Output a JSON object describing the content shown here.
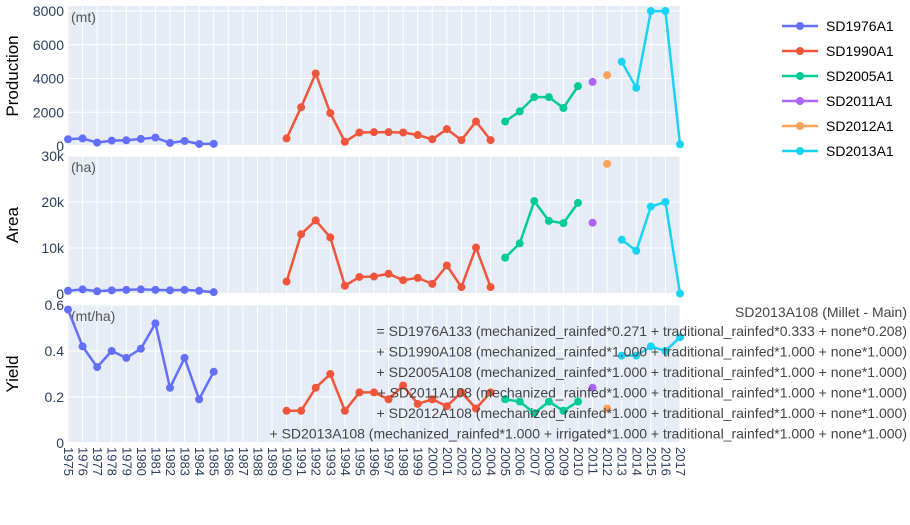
{
  "chart_data": {
    "type": "line",
    "x": [
      1975,
      1976,
      1977,
      1978,
      1979,
      1980,
      1981,
      1982,
      1983,
      1984,
      1985,
      1986,
      1987,
      1988,
      1989,
      1990,
      1991,
      1992,
      1993,
      1994,
      1995,
      1996,
      1997,
      1998,
      1999,
      2000,
      2001,
      2002,
      2003,
      2004,
      2005,
      2006,
      2007,
      2008,
      2009,
      2010,
      2011,
      2012,
      2013,
      2014,
      2015,
      2016,
      2017
    ],
    "x_tick_labels": [
      "1975",
      "1976",
      "1977",
      "1978",
      "1979",
      "1980",
      "1981",
      "1982",
      "1983",
      "1984",
      "1985",
      "1986",
      "1987",
      "1988",
      "1989",
      "1990",
      "1991",
      "1992",
      "1993",
      "1994",
      "1995",
      "1996",
      "1997",
      "1998",
      "1999",
      "2000",
      "2001",
      "2002",
      "2003",
      "2004",
      "2005",
      "2006",
      "2007",
      "2008",
      "2009",
      "2010",
      "2011",
      "2012",
      "2013",
      "2014",
      "2015",
      "2016",
      "2017"
    ],
    "xlim": [
      1975,
      2017
    ],
    "grid": true,
    "legend_position": "top-right",
    "series_colors": {
      "SD1976A1": "#636efa",
      "SD1990A1": "#ef553b",
      "SD2005A1": "#00cc96",
      "SD2011A1": "#ab63fa",
      "SD2012A1": "#ffa15a",
      "SD2013A1": "#19d3f3"
    },
    "legend": [
      "SD1976A1",
      "SD1990A1",
      "SD2005A1",
      "SD2011A1",
      "SD2012A1",
      "SD2013A1"
    ],
    "panels": [
      {
        "ylabel": "Production",
        "unit": "(mt)",
        "ylim": [
          0,
          8300
        ],
        "yticks": [
          0,
          2000,
          4000,
          6000,
          8000
        ],
        "ytick_labels": [
          "0",
          "2000",
          "4000",
          "6000",
          "8000"
        ],
        "series": [
          {
            "name": "SD1976A1",
            "x": [
              1975,
              1976,
              1977,
              1978,
              1979,
              1980,
              1981,
              1982,
              1983,
              1984,
              1985
            ],
            "y": [
              400,
              450,
              200,
              320,
              340,
              420,
              500,
              180,
              300,
              120,
              130
            ]
          },
          {
            "name": "SD1990A1",
            "x": [
              1990,
              1991,
              1992,
              1993,
              1994,
              1995,
              1996,
              1997,
              1998,
              1999,
              2000,
              2001,
              2002,
              2003,
              2004
            ],
            "y": [
              450,
              2300,
              4300,
              1950,
              250,
              800,
              820,
              820,
              800,
              650,
              400,
              1000,
              350,
              1450,
              350
            ]
          },
          {
            "name": "SD2005A1",
            "x": [
              2005,
              2006,
              2007,
              2008,
              2009,
              2010
            ],
            "y": [
              1450,
              2050,
              2900,
              2900,
              2250,
              3550
            ]
          },
          {
            "name": "SD2011A1",
            "x": [
              2011
            ],
            "y": [
              3800
            ]
          },
          {
            "name": "SD2012A1",
            "x": [
              2012
            ],
            "y": [
              4200
            ]
          },
          {
            "name": "SD2013A1",
            "x": [
              2013,
              2014,
              2015,
              2016,
              2017
            ],
            "y": [
              5000,
              3450,
              8000,
              8000,
              100
            ]
          }
        ]
      },
      {
        "ylabel": "Area",
        "unit": "(ha)",
        "ylim": [
          0,
          30000
        ],
        "yticks": [
          0,
          10000,
          20000,
          30000
        ],
        "ytick_labels": [
          "0",
          "10k",
          "20k",
          "30k"
        ],
        "series": [
          {
            "name": "SD1976A1",
            "x": [
              1975,
              1976,
              1977,
              1978,
              1979,
              1980,
              1981,
              1982,
              1983,
              1984,
              1985
            ],
            "y": [
              700,
              1000,
              600,
              800,
              900,
              1000,
              900,
              800,
              900,
              700,
              400
            ]
          },
          {
            "name": "SD1990A1",
            "x": [
              1990,
              1991,
              1992,
              1993,
              1994,
              1995,
              1996,
              1997,
              1998,
              1999,
              2000,
              2001,
              2002,
              2003,
              2004
            ],
            "y": [
              2700,
              13000,
              16000,
              12300,
              1800,
              3700,
              3800,
              4400,
              3000,
              3500,
              2200,
              6200,
              1500,
              10100,
              1500
            ]
          },
          {
            "name": "SD2005A1",
            "x": [
              2005,
              2006,
              2007,
              2008,
              2009,
              2010
            ],
            "y": [
              7900,
              11000,
              20200,
              15900,
              15400,
              19800
            ]
          },
          {
            "name": "SD2011A1",
            "x": [
              2011
            ],
            "y": [
              15500
            ]
          },
          {
            "name": "SD2012A1",
            "x": [
              2012
            ],
            "y": [
              28300
            ]
          },
          {
            "name": "SD2013A1",
            "x": [
              2013,
              2014,
              2015,
              2016,
              2017
            ],
            "y": [
              11800,
              9400,
              19000,
              20000,
              100
            ]
          }
        ]
      },
      {
        "ylabel": "Yield",
        "unit": "(mt/ha)",
        "ylim": [
          0,
          0.6
        ],
        "yticks": [
          0,
          0.2,
          0.4,
          0.6
        ],
        "ytick_labels": [
          "0",
          "0.2",
          "0.4",
          "0.6"
        ],
        "series": [
          {
            "name": "SD1976A1",
            "x": [
              1975,
              1976,
              1977,
              1978,
              1979,
              1980,
              1981,
              1982,
              1983,
              1984,
              1985
            ],
            "y": [
              0.58,
              0.42,
              0.33,
              0.4,
              0.37,
              0.41,
              0.52,
              0.24,
              0.37,
              0.19,
              0.31
            ]
          },
          {
            "name": "SD1990A1",
            "x": [
              1990,
              1991,
              1992,
              1993,
              1994,
              1995,
              1996,
              1997,
              1998,
              1999,
              2000,
              2001,
              2002,
              2003,
              2004
            ],
            "y": [
              0.14,
              0.14,
              0.24,
              0.3,
              0.14,
              0.22,
              0.22,
              0.19,
              0.25,
              0.17,
              0.19,
              0.16,
              0.22,
              0.15,
              0.22
            ]
          },
          {
            "name": "SD2005A1",
            "x": [
              2005,
              2006,
              2007,
              2008,
              2009,
              2010
            ],
            "y": [
              0.19,
              0.18,
              0.13,
              0.18,
              0.14,
              0.18
            ]
          },
          {
            "name": "SD2011A1",
            "x": [
              2011
            ],
            "y": [
              0.24
            ]
          },
          {
            "name": "SD2012A1",
            "x": [
              2012
            ],
            "y": [
              0.15
            ]
          },
          {
            "name": "SD2013A1",
            "x": [
              2013,
              2014,
              2015,
              2016,
              2017
            ],
            "y": [
              0.38,
              0.38,
              0.42,
              0.4,
              0.46
            ]
          }
        ]
      }
    ],
    "annotation": {
      "title": "SD2013A108 (Millet - Main)",
      "lines": [
        "= SD1976A133 (mechanized_rainfed*0.271 + traditional_rainfed*0.333 + none*0.208)",
        "+ SD1990A108 (mechanized_rainfed*1.000 + traditional_rainfed*1.000 + none*1.000)",
        "+ SD2005A108 (mechanized_rainfed*1.000 + traditional_rainfed*1.000 + none*1.000)",
        "+ SD2011A108 (mechanized_rainfed*1.000 + traditional_rainfed*1.000 + none*1.000)",
        "+ SD2012A108 (mechanized_rainfed*1.000 + traditional_rainfed*1.000 + none*1.000)",
        "+ SD2013A108 (mechanized_rainfed*1.000 + irrigated*1.000 + traditional_rainfed*1.000 + none*1.000)"
      ]
    }
  }
}
